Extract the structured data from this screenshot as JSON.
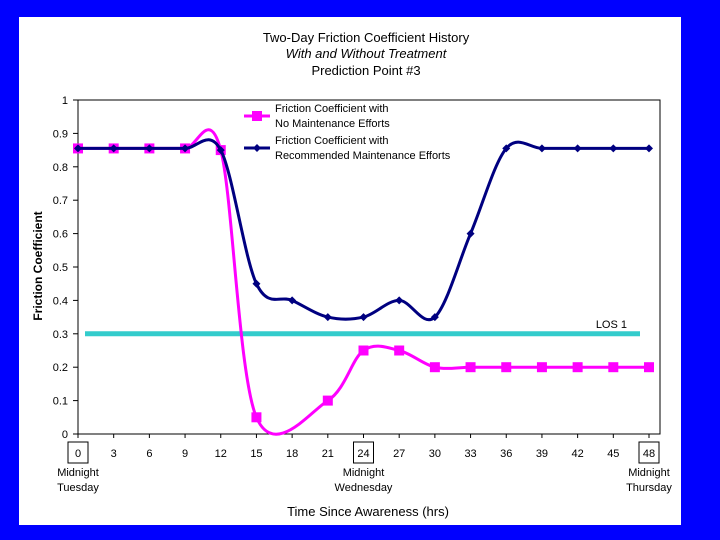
{
  "chart_data": {
    "type": "line",
    "title": "Two-Day Friction Coefficient History",
    "subtitle": "With and Without Treatment",
    "subtitle2": "Prediction Point #3",
    "xlabel": "Time Since Awareness (hrs)",
    "ylabel": "Friction Coefficient",
    "xlim": [
      0,
      48
    ],
    "ylim": [
      0,
      1
    ],
    "x_ticks": [
      0,
      3,
      6,
      9,
      12,
      15,
      18,
      21,
      24,
      27,
      30,
      33,
      36,
      39,
      42,
      45,
      48
    ],
    "x_ticks_boxed": [
      0,
      24,
      48
    ],
    "y_ticks": [
      0,
      0.1,
      0.2,
      0.3,
      0.4,
      0.5,
      0.6,
      0.7,
      0.8,
      0.9,
      1
    ],
    "grid": false,
    "legend_position": "top-right",
    "x_annotations": [
      {
        "x": 0,
        "line1": "Midnight",
        "line2": "Tuesday"
      },
      {
        "x": 24,
        "line1": "Midnight",
        "line2": "Wednesday"
      },
      {
        "x": 48,
        "line1": "Midnight",
        "line2": "Thursday"
      }
    ],
    "series": [
      {
        "name": "Friction Coefficient with No Maintenance Efforts",
        "legend_line1": "Friction Coefficient with",
        "legend_line2": "No Maintenance Efforts",
        "color": "#ff00ff",
        "marker": "square",
        "x": [
          0,
          3,
          6,
          9,
          12,
          15,
          21,
          24,
          27,
          30,
          33,
          36,
          39,
          42,
          45,
          48
        ],
        "y": [
          0.855,
          0.855,
          0.855,
          0.855,
          0.85,
          0.05,
          0.1,
          0.25,
          0.25,
          0.2,
          0.2,
          0.2,
          0.2,
          0.2,
          0.2,
          0.2
        ]
      },
      {
        "name": "Friction Coefficient with Recommended Maintenance Efforts",
        "legend_line1": "Friction Coefficient with",
        "legend_line2": "Recommended Maintenance Efforts",
        "color": "#000080",
        "marker": "diamond",
        "x": [
          0,
          3,
          6,
          9,
          12,
          15,
          18,
          21,
          24,
          27,
          30,
          33,
          36,
          39,
          42,
          45,
          48
        ],
        "y": [
          0.855,
          0.855,
          0.855,
          0.855,
          0.85,
          0.45,
          0.4,
          0.35,
          0.35,
          0.4,
          0.35,
          0.6,
          0.855,
          0.855,
          0.855,
          0.855,
          0.855
        ]
      }
    ],
    "reference_line": {
      "label": "LOS 1",
      "y": 0.3,
      "color": "#33cccc"
    }
  }
}
